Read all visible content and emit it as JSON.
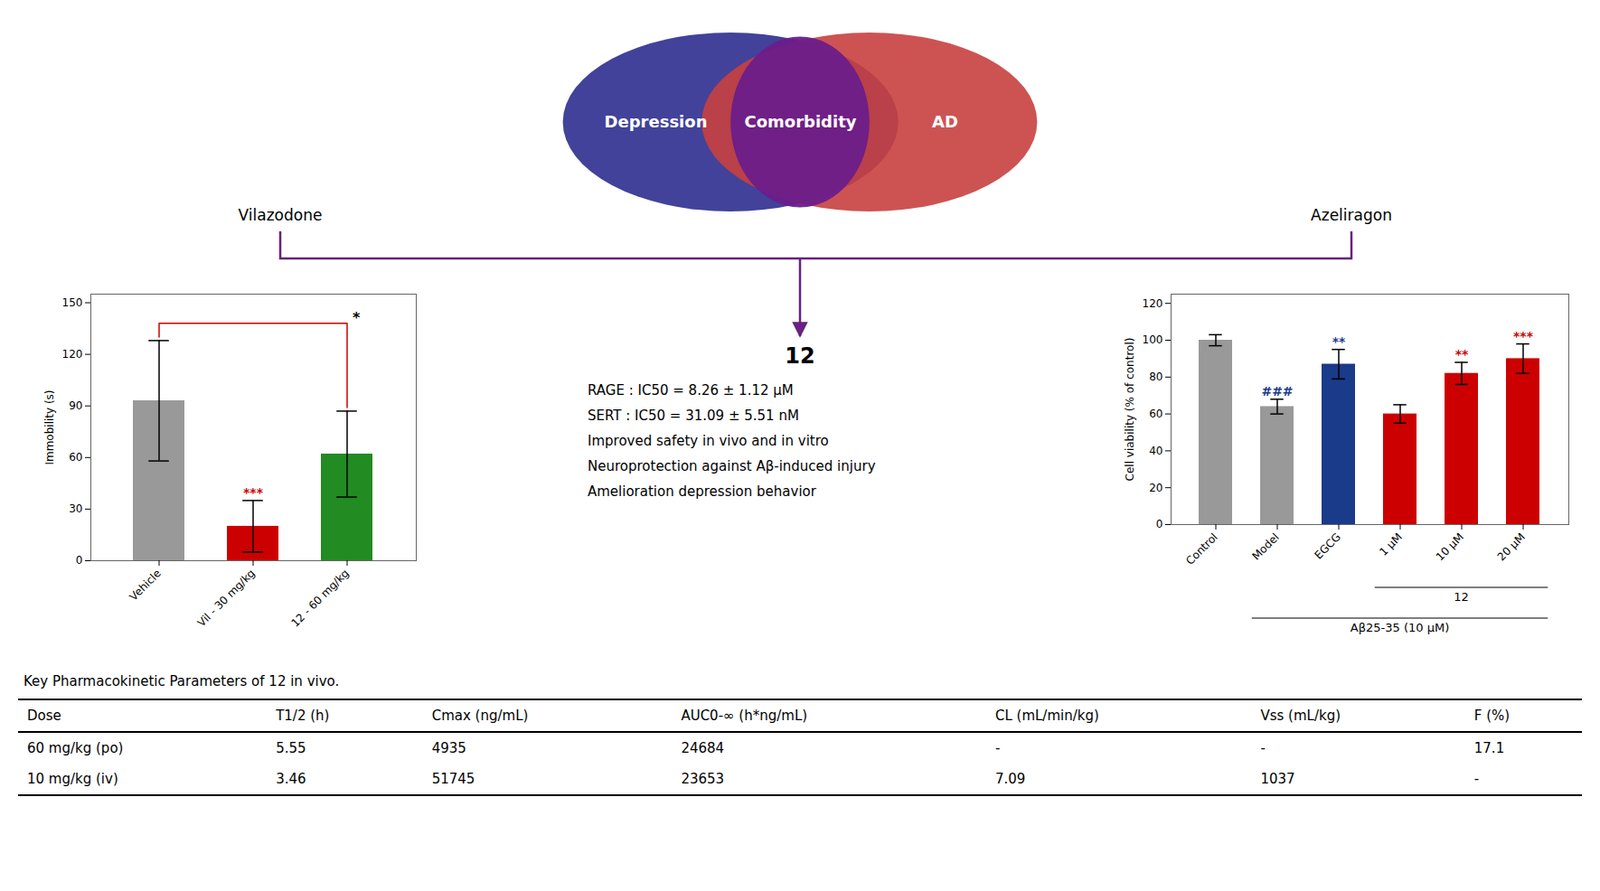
{
  "chart_data": [
    {
      "type": "venn",
      "categories": [
        "Depression",
        "AD",
        "Comorbidity"
      ],
      "colors": [
        "#2d2d8f",
        "#c84040",
        "#6b1e8a"
      ]
    },
    {
      "type": "scheme",
      "categories": [
        "Vilazodone",
        "Azeliragon",
        "12"
      ],
      "annotations": [
        "RAGE : IC50 = 8.26 ± 1.12 μM",
        "SERT : IC50 = 31.09 ± 5.51 nM",
        "Improved safety in vivo and in vitro",
        "Neuroprotection against Aβ-induced injury",
        "Amelioration depression behavior"
      ]
    },
    {
      "type": "bar",
      "categories": [
        "Vehicle",
        "Vil - 30 mg/kg",
        "12 - 60 mg/kg"
      ],
      "values": [
        93,
        20,
        62
      ],
      "errors": [
        35,
        15,
        25
      ],
      "colors": [
        "#999999",
        "#cc0000",
        "#228B22"
      ],
      "ylabel": "Immobility (s)",
      "ylim": [
        0,
        155
      ],
      "yticks": [
        0,
        30,
        60,
        90,
        120,
        150
      ],
      "annotations": [
        {
          "text": "***",
          "category": "Vil - 30 mg/kg",
          "color": "#cc0000"
        },
        {
          "text": "*",
          "from": "Vehicle",
          "to": "12 - 60 mg/kg",
          "color": "#cc0000"
        }
      ]
    },
    {
      "type": "bar",
      "categories": [
        "Control",
        "Model",
        "EGCG",
        "1 μM",
        "10 μM",
        "20 μM"
      ],
      "values": [
        100,
        64,
        87,
        60,
        82,
        90
      ],
      "errors": [
        3,
        4,
        8,
        5,
        6,
        8
      ],
      "colors": [
        "#999999",
        "#999999",
        "#1a3a8a",
        "#cc0000",
        "#cc0000",
        "#cc0000"
      ],
      "ylabel": "Cell viability (% of control)",
      "ylim": [
        0,
        125
      ],
      "yticks": [
        0,
        20,
        40,
        60,
        80,
        100,
        120
      ],
      "annotations": [
        {
          "text": "###",
          "category": "Model",
          "color": "#1a3a8a"
        },
        {
          "text": "**",
          "category": "EGCG",
          "color": "#1a3a8a"
        },
        {
          "text": "**",
          "category": "10 μM",
          "color": "#cc0000"
        },
        {
          "text": "***",
          "category": "20 μM",
          "color": "#cc0000"
        }
      ],
      "groups": [
        {
          "label": "12",
          "categories": [
            "1 μM",
            "10 μM",
            "20 μM"
          ]
        },
        {
          "label": "Aβ25-35 (10 μM)",
          "categories": [
            "Model",
            "EGCG",
            "1 μM",
            "10 μM",
            "20 μM"
          ]
        }
      ]
    },
    {
      "type": "table",
      "title": "Key Pharmacokinetic Parameters of 12 in vivo.",
      "columns": [
        "Dose",
        "T1/2 (h)",
        "Cmax (ng/mL)",
        "AUC0-∞ (h*ng/mL)",
        "CL (mL/min/kg)",
        "Vss (mL/kg)",
        "F (%)"
      ],
      "rows": [
        [
          "60 mg/kg (po)",
          "5.55",
          "4935",
          "24684",
          "-",
          "-",
          "17.1"
        ],
        [
          "10 mg/kg (iv)",
          "3.46",
          "51745",
          "23653",
          "7.09",
          "1037",
          "-"
        ]
      ]
    }
  ]
}
